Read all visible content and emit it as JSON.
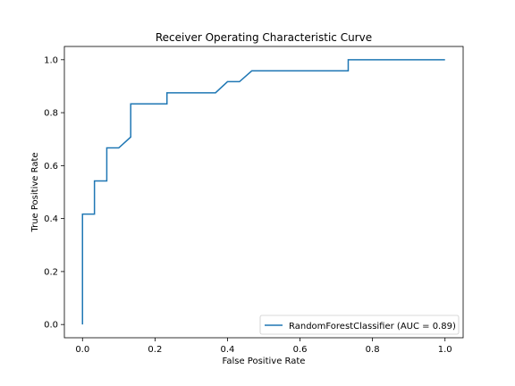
{
  "chart_data": {
    "type": "line",
    "title": "Receiver Operating Characteristic Curve",
    "xlabel": "False Positive Rate",
    "ylabel": "True Positive Rate",
    "xlim": [
      -0.05,
      1.05
    ],
    "ylim": [
      -0.05,
      1.05
    ],
    "xticks": [
      0.0,
      0.2,
      0.4,
      0.6,
      0.8,
      1.0
    ],
    "yticks": [
      0.0,
      0.2,
      0.4,
      0.6,
      0.8,
      1.0
    ],
    "xtick_labels": [
      "0.0",
      "0.2",
      "0.4",
      "0.6",
      "0.8",
      "1.0"
    ],
    "ytick_labels": [
      "0.0",
      "0.2",
      "0.4",
      "0.6",
      "0.8",
      "1.0"
    ],
    "grid": false,
    "legend_position": "lower right",
    "series": [
      {
        "name": "RandomForestClassifier (AUC = 0.89)",
        "color": "#1f77b4",
        "x": [
          0.0,
          0.0,
          0.0,
          0.033,
          0.033,
          0.067,
          0.067,
          0.1,
          0.1,
          0.133,
          0.133,
          0.233,
          0.233,
          0.367,
          0.4,
          0.433,
          0.467,
          0.733,
          0.733,
          1.0
        ],
        "y": [
          0.0,
          0.0,
          0.417,
          0.417,
          0.542,
          0.542,
          0.667,
          0.667,
          0.667,
          0.708,
          0.833,
          0.833,
          0.875,
          0.875,
          0.917,
          0.917,
          0.958,
          0.958,
          1.0,
          1.0
        ]
      }
    ]
  }
}
